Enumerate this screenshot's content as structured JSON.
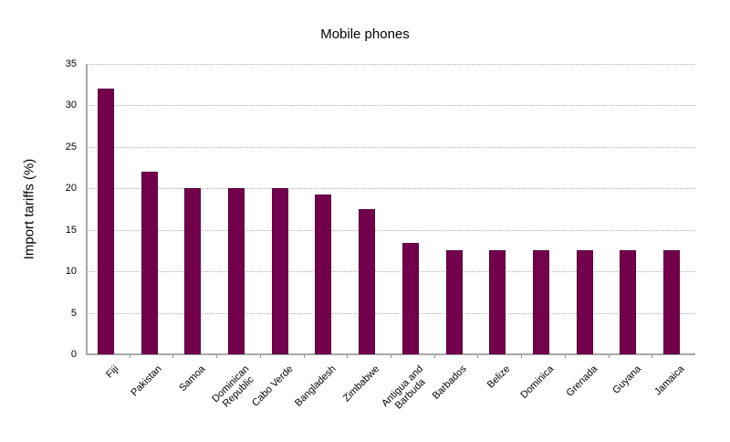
{
  "chart_data": {
    "type": "bar",
    "title": "Mobile phones",
    "xlabel": "",
    "ylabel": "Import tariffs (%)",
    "ylim": [
      0,
      35
    ],
    "yticks": [
      0,
      5,
      10,
      15,
      20,
      25,
      30,
      35
    ],
    "grid": true,
    "legend": null,
    "categories": [
      "Fiji",
      "Pakistan",
      "Samoa",
      "Dominican Republic",
      "Cabo Verde",
      "Bangladesh",
      "Zimbabwe",
      "Antigua and Barbuda",
      "Barbados",
      "Belize",
      "Dominica",
      "Grenada",
      "Guyana",
      "Jamaica"
    ],
    "category_labels": [
      "Fiji",
      "Pakistan",
      "Samoa",
      "Dominican\nRepublic",
      "Cabo Verde",
      "Bangladesh",
      "Zimbabwe",
      "Antigua and\nBarbuda",
      "Barbados",
      "Belize",
      "Dominica",
      "Grenada",
      "Guyana",
      "Jamaica"
    ],
    "values": [
      32,
      22,
      20,
      20,
      20,
      19.3,
      17.5,
      13.4,
      12.5,
      12.5,
      12.5,
      12.5,
      12.5,
      12.5
    ],
    "bar_color": "#73004d"
  }
}
